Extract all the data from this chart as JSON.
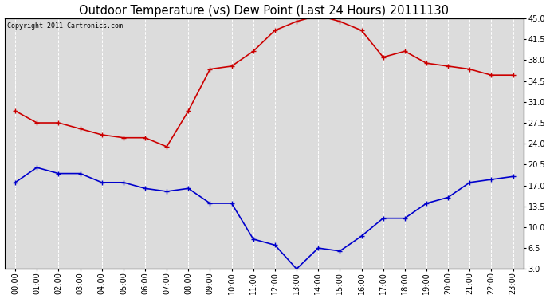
{
  "title": "Outdoor Temperature (vs) Dew Point (Last 24 Hours) 20111130",
  "copyright_text": "Copyright 2011 Cartronics.com",
  "hours": [
    "00:00",
    "01:00",
    "02:00",
    "03:00",
    "04:00",
    "05:00",
    "06:00",
    "07:00",
    "08:00",
    "09:00",
    "10:00",
    "11:00",
    "12:00",
    "13:00",
    "14:00",
    "15:00",
    "16:00",
    "17:00",
    "18:00",
    "19:00",
    "20:00",
    "21:00",
    "22:00",
    "23:00"
  ],
  "temp_red": [
    29.5,
    27.5,
    27.5,
    26.5,
    25.5,
    25.0,
    25.0,
    23.5,
    29.5,
    36.5,
    37.0,
    39.5,
    43.0,
    44.5,
    45.5,
    44.5,
    43.0,
    38.5,
    39.5,
    37.5,
    37.0,
    36.5,
    35.5,
    35.5
  ],
  "dewpoint_blue": [
    17.5,
    20.0,
    19.0,
    19.0,
    17.5,
    17.5,
    16.5,
    16.0,
    16.5,
    14.0,
    14.0,
    8.0,
    7.0,
    3.0,
    6.5,
    6.0,
    8.5,
    11.5,
    11.5,
    14.0,
    15.0,
    17.5,
    18.0,
    18.5
  ],
  "ylim": [
    3.0,
    45.0
  ],
  "yticks": [
    3.0,
    6.5,
    10.0,
    13.5,
    17.0,
    20.5,
    24.0,
    27.5,
    31.0,
    34.5,
    38.0,
    41.5,
    45.0
  ],
  "bg_color": "#ffffff",
  "plot_bg_color": "#dcdcdc",
  "red_color": "#cc0000",
  "blue_color": "#0000cc",
  "grid_color": "#ffffff",
  "title_fontsize": 10.5,
  "tick_fontsize": 7,
  "copyright_fontsize": 6,
  "line_width": 1.2,
  "marker_size": 4
}
